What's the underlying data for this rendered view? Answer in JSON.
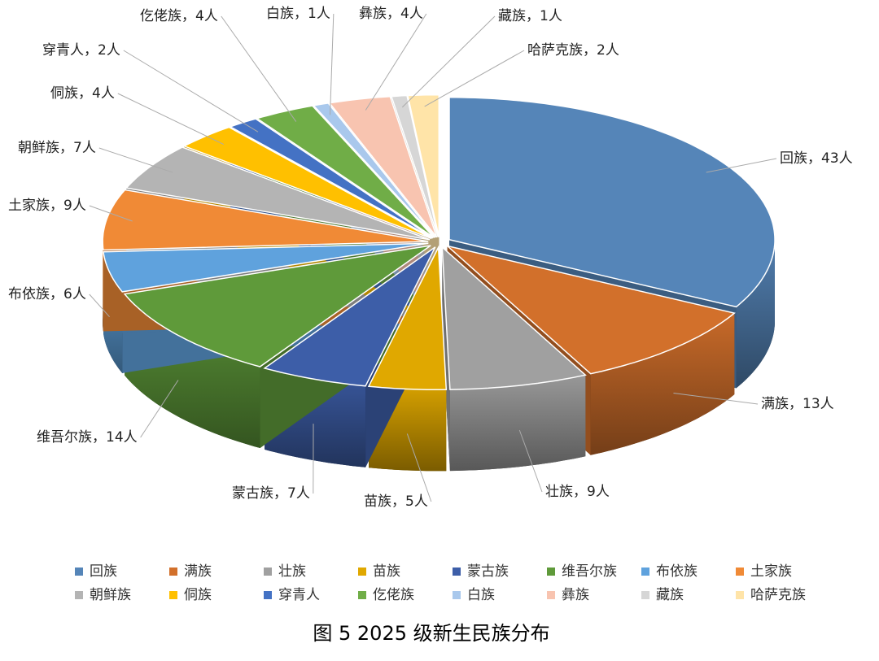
{
  "chart_data": {
    "type": "pie",
    "title": "图 5 2025 级新生民族分布",
    "categories": [
      "回族",
      "满族",
      "壮族",
      "苗族",
      "蒙古族",
      "维吾尔族",
      "布依族",
      "土家族",
      "朝鲜族",
      "侗族",
      "穿青人",
      "仡佬族",
      "白族",
      "彝族",
      "藏族",
      "哈萨克族"
    ],
    "values": [
      43,
      13,
      9,
      5,
      7,
      14,
      6,
      9,
      7,
      4,
      2,
      4,
      1,
      4,
      1,
      2
    ],
    "value_labels": [
      "回族，43人",
      "满族，13人",
      "壮族，9人",
      "苗族，5人",
      "蒙古族，7人",
      "维吾尔族，14人",
      "布依族，6人",
      "土家族，9人",
      "朝鲜族，7人",
      "侗族，4人",
      "穿青人，2人",
      "仡佬族，4人",
      "白族，1人",
      "彝族，4人",
      "藏族，1人",
      "哈萨克族，2人"
    ],
    "colors": [
      "#5585b8",
      "#d2702b",
      "#a0a0a0",
      "#e0a800",
      "#3d5ea8",
      "#5f9a3a",
      "#5fa2dd",
      "#f08a36",
      "#b4b4b4",
      "#ffc000",
      "#4472c4",
      "#70ad47",
      "#a9c8ec",
      "#f8c4b0",
      "#d6d6d6",
      "#ffe4a8"
    ],
    "legend": "bottom"
  }
}
